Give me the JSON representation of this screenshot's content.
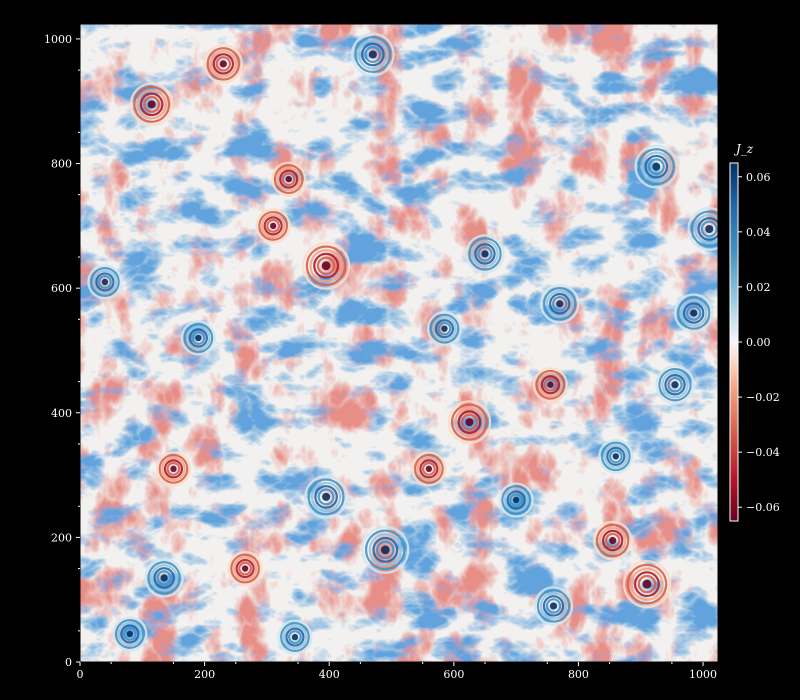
{
  "chart_data": {
    "type": "heatmap",
    "title": "",
    "xlabel": "",
    "ylabel": "",
    "xlim": [
      0,
      1024
    ],
    "ylim": [
      0,
      1024
    ],
    "x_ticks": [
      0,
      200,
      400,
      600,
      800,
      1000
    ],
    "y_ticks": [
      0,
      200,
      400,
      600,
      800,
      1000
    ],
    "colormap": "RdBu",
    "colorbar": {
      "label": "J_z",
      "vmin": -0.065,
      "vmax": 0.065,
      "ticks": [
        0.06,
        0.04,
        0.02,
        0.0,
        -0.02,
        -0.04,
        -0.06
      ],
      "tick_labels": [
        "0.06",
        "0.04",
        "0.02",
        "0.00",
        "−0.02",
        "−0.04",
        "−0.06"
      ]
    },
    "colors": {
      "negative": "#67001f",
      "zero": "#f7f7f7",
      "positive": "#053061",
      "background": "#000000"
    },
    "vortices": [
      {
        "x": 395,
        "y": 636,
        "sign": -1,
        "strength": 0.06
      },
      {
        "x": 115,
        "y": 895,
        "sign": -1,
        "strength": 0.05
      },
      {
        "x": 230,
        "y": 960,
        "sign": -1,
        "strength": 0.04
      },
      {
        "x": 470,
        "y": 975,
        "sign": 1,
        "strength": 0.05
      },
      {
        "x": 925,
        "y": 795,
        "sign": 1,
        "strength": 0.05
      },
      {
        "x": 1010,
        "y": 695,
        "sign": 1,
        "strength": 0.05
      },
      {
        "x": 650,
        "y": 655,
        "sign": 1,
        "strength": 0.04
      },
      {
        "x": 770,
        "y": 575,
        "sign": 1,
        "strength": 0.04
      },
      {
        "x": 585,
        "y": 535,
        "sign": 1,
        "strength": 0.03
      },
      {
        "x": 955,
        "y": 445,
        "sign": 1,
        "strength": 0.04
      },
      {
        "x": 625,
        "y": 385,
        "sign": -1,
        "strength": 0.05
      },
      {
        "x": 755,
        "y": 445,
        "sign": -1,
        "strength": 0.03
      },
      {
        "x": 395,
        "y": 265,
        "sign": 1,
        "strength": 0.05
      },
      {
        "x": 490,
        "y": 180,
        "sign": 1,
        "strength": 0.06
      },
      {
        "x": 910,
        "y": 125,
        "sign": -1,
        "strength": 0.06
      },
      {
        "x": 135,
        "y": 135,
        "sign": 1,
        "strength": 0.04
      },
      {
        "x": 265,
        "y": 150,
        "sign": -1,
        "strength": 0.03
      },
      {
        "x": 760,
        "y": 90,
        "sign": 1,
        "strength": 0.04
      },
      {
        "x": 80,
        "y": 45,
        "sign": 1,
        "strength": 0.03
      },
      {
        "x": 345,
        "y": 40,
        "sign": 1,
        "strength": 0.03
      },
      {
        "x": 855,
        "y": 195,
        "sign": -1,
        "strength": 0.04
      },
      {
        "x": 335,
        "y": 775,
        "sign": -1,
        "strength": 0.03
      },
      {
        "x": 190,
        "y": 520,
        "sign": 1,
        "strength": 0.03
      },
      {
        "x": 985,
        "y": 560,
        "sign": 1,
        "strength": 0.04
      },
      {
        "x": 310,
        "y": 700,
        "sign": -1,
        "strength": 0.03
      },
      {
        "x": 560,
        "y": 310,
        "sign": -1,
        "strength": 0.03
      },
      {
        "x": 40,
        "y": 610,
        "sign": 1,
        "strength": 0.03
      },
      {
        "x": 700,
        "y": 260,
        "sign": 1,
        "strength": 0.03
      },
      {
        "x": 150,
        "y": 310,
        "sign": -1,
        "strength": 0.03
      },
      {
        "x": 860,
        "y": 330,
        "sign": 1,
        "strength": 0.03
      }
    ]
  }
}
